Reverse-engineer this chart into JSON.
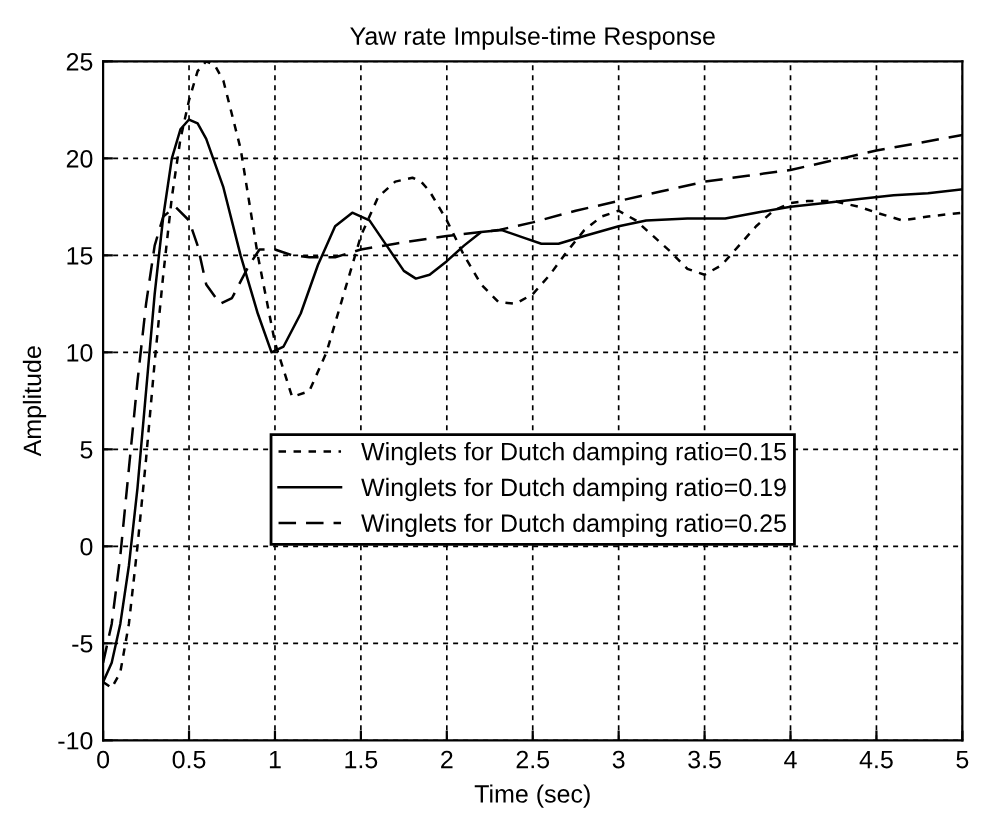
{
  "chart_data": {
    "type": "line",
    "title": "Yaw rate Impulse-time Response",
    "xlabel": "Time (sec)",
    "ylabel": "Amplitude",
    "xlim": [
      0,
      5
    ],
    "ylim": [
      -10,
      25
    ],
    "xticks": [
      0,
      0.5,
      1,
      1.5,
      2,
      2.5,
      3,
      3.5,
      4,
      4.5,
      5
    ],
    "yticks": [
      -10,
      -5,
      0,
      5,
      10,
      15,
      20,
      25
    ],
    "grid": true,
    "legend": "lower center",
    "marker": "none",
    "series": [
      {
        "name": "Winglets for Dutch damping ratio=0.15",
        "color": "#000000",
        "line_style": "dotted",
        "x": [
          0,
          0.05,
          0.1,
          0.15,
          0.2,
          0.25,
          0.3,
          0.35,
          0.4,
          0.45,
          0.5,
          0.55,
          0.6,
          0.65,
          0.7,
          0.8,
          0.9,
          1.0,
          1.1,
          1.2,
          1.3,
          1.4,
          1.5,
          1.6,
          1.7,
          1.8,
          1.85,
          1.9,
          2.0,
          2.1,
          2.2,
          2.3,
          2.4,
          2.5,
          2.6,
          2.7,
          2.8,
          2.9,
          3.0,
          3.1,
          3.2,
          3.3,
          3.4,
          3.5,
          3.6,
          3.7,
          3.8,
          3.9,
          4.0,
          4.1,
          4.25,
          4.4,
          4.5,
          4.65,
          4.8,
          5.0
        ],
        "values": [
          -7,
          -7.3,
          -6.5,
          -4,
          0,
          4.5,
          9.5,
          14,
          18,
          21,
          23,
          24.5,
          25,
          24.8,
          24,
          20.5,
          15,
          10.5,
          7.7,
          8,
          10,
          13,
          16,
          18,
          18.8,
          19,
          18.8,
          18.3,
          16.8,
          15,
          13.5,
          12.6,
          12.5,
          13,
          14,
          15.2,
          16.3,
          17,
          17.3,
          16.8,
          16,
          15.2,
          14.3,
          14,
          14.5,
          15.5,
          16.5,
          17.3,
          17.7,
          17.8,
          17.8,
          17.5,
          17.2,
          16.8,
          17,
          17.2
        ]
      },
      {
        "name": "Winglets for Dutch damping ratio=0.19",
        "color": "#000000",
        "line_style": "solid",
        "x": [
          0,
          0.05,
          0.1,
          0.15,
          0.2,
          0.25,
          0.3,
          0.35,
          0.4,
          0.45,
          0.5,
          0.55,
          0.6,
          0.7,
          0.8,
          0.9,
          0.98,
          1.05,
          1.15,
          1.25,
          1.35,
          1.45,
          1.55,
          1.65,
          1.75,
          1.82,
          1.9,
          2.0,
          2.1,
          2.2,
          2.32,
          2.45,
          2.55,
          2.65,
          2.8,
          3.0,
          3.16,
          3.4,
          3.62,
          3.8,
          4.0,
          4.2,
          4.4,
          4.6,
          4.8,
          5.0
        ],
        "values": [
          -7,
          -6,
          -4,
          -1,
          3,
          8,
          13,
          17,
          20,
          21.5,
          22,
          21.8,
          21,
          18.5,
          15,
          12,
          10,
          10.3,
          12,
          14.5,
          16.5,
          17.2,
          16.8,
          15.5,
          14.2,
          13.8,
          14,
          14.7,
          15.5,
          16.2,
          16.3,
          15.9,
          15.6,
          15.6,
          16,
          16.5,
          16.8,
          16.9,
          16.9,
          17.2,
          17.5,
          17.7,
          17.9,
          18.1,
          18.2,
          18.4
        ]
      },
      {
        "name": "Winglets for Dutch damping ratio=0.25",
        "color": "#000000",
        "line_style": "dashed",
        "x": [
          0,
          0.05,
          0.1,
          0.15,
          0.2,
          0.25,
          0.3,
          0.35,
          0.42,
          0.5,
          0.55,
          0.6,
          0.68,
          0.75,
          0.85,
          0.91,
          1.0,
          1.1,
          1.2,
          1.35,
          1.5,
          1.7,
          2.0,
          2.3,
          2.5,
          2.75,
          3.0,
          3.25,
          3.5,
          3.75,
          4.0,
          4.25,
          4.5,
          4.75,
          5.0
        ],
        "values": [
          -6,
          -4,
          -0.5,
          4,
          8.5,
          12.5,
          15.5,
          17,
          17.5,
          16.8,
          15.5,
          13.5,
          12.5,
          12.8,
          14.5,
          15.3,
          15.3,
          15,
          14.9,
          14.9,
          15.3,
          15.6,
          16,
          16.3,
          16.7,
          17.3,
          17.8,
          18.3,
          18.8,
          19.1,
          19.4,
          19.9,
          20.4,
          20.8,
          21.2
        ]
      }
    ]
  }
}
